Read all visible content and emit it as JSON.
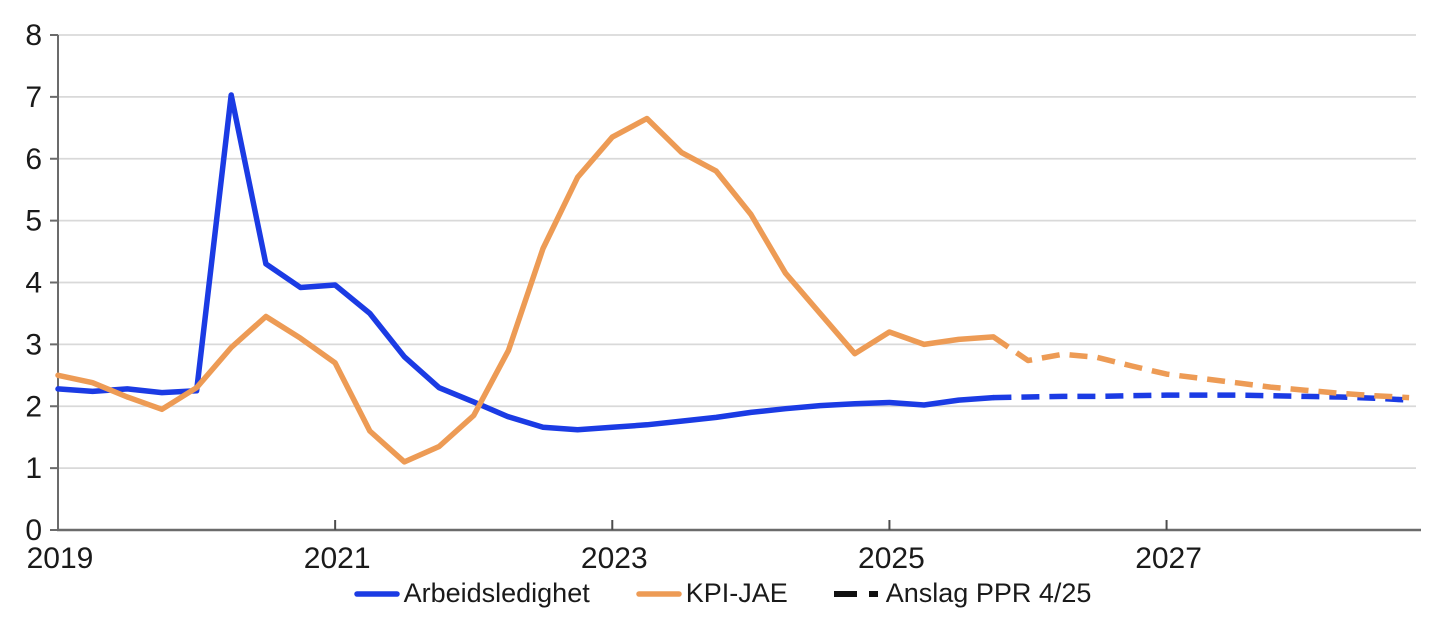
{
  "chart_data": {
    "type": "line",
    "title": "",
    "xlabel": "",
    "ylabel": "",
    "x_domain": [
      2019.0,
      2028.8
    ],
    "y_domain": [
      0,
      8
    ],
    "y_ticks": [
      0,
      1,
      2,
      3,
      4,
      5,
      6,
      7,
      8
    ],
    "x_ticks": [
      2019,
      2021,
      2023,
      2025,
      2027
    ],
    "x_tick_labels": [
      "2019",
      "2021",
      "2023",
      "2025",
      "2027"
    ],
    "grid": "horizontal",
    "legend_position": "bottom-center",
    "colors": {
      "blue": "#1b3be4",
      "orange": "#ed9b55",
      "grid": "#d9d9d9",
      "axis": "#6b6b6b",
      "tick": "#4d4d4d",
      "text": "#1a1a1a",
      "forecast_marker": "#111111"
    },
    "series": [
      {
        "name": "Arbeidsledighet",
        "color": "#1b3be4",
        "style": "solid",
        "points": [
          [
            2019.0,
            2.28
          ],
          [
            2019.25,
            2.24
          ],
          [
            2019.5,
            2.28
          ],
          [
            2019.75,
            2.22
          ],
          [
            2020.0,
            2.25
          ],
          [
            2020.25,
            7.03
          ],
          [
            2020.5,
            4.3
          ],
          [
            2020.75,
            3.92
          ],
          [
            2021.0,
            3.96
          ],
          [
            2021.25,
            3.5
          ],
          [
            2021.5,
            2.8
          ],
          [
            2021.75,
            2.3
          ],
          [
            2022.0,
            2.07
          ],
          [
            2022.25,
            1.83
          ],
          [
            2022.5,
            1.66
          ],
          [
            2022.75,
            1.62
          ],
          [
            2023.0,
            1.66
          ],
          [
            2023.25,
            1.7
          ],
          [
            2023.5,
            1.76
          ],
          [
            2023.75,
            1.82
          ],
          [
            2024.0,
            1.9
          ],
          [
            2024.25,
            1.96
          ],
          [
            2024.5,
            2.01
          ],
          [
            2024.75,
            2.04
          ],
          [
            2025.0,
            2.06
          ],
          [
            2025.25,
            2.02
          ],
          [
            2025.5,
            2.1
          ],
          [
            2025.75,
            2.14
          ]
        ]
      },
      {
        "name": "KPI-JAE",
        "color": "#ed9b55",
        "style": "solid",
        "points": [
          [
            2019.0,
            2.5
          ],
          [
            2019.25,
            2.38
          ],
          [
            2019.5,
            2.15
          ],
          [
            2019.75,
            1.95
          ],
          [
            2020.0,
            2.3
          ],
          [
            2020.25,
            2.95
          ],
          [
            2020.5,
            3.45
          ],
          [
            2020.75,
            3.1
          ],
          [
            2021.0,
            2.7
          ],
          [
            2021.25,
            1.6
          ],
          [
            2021.5,
            1.1
          ],
          [
            2021.75,
            1.35
          ],
          [
            2022.0,
            1.85
          ],
          [
            2022.25,
            2.9
          ],
          [
            2022.5,
            4.55
          ],
          [
            2022.75,
            5.7
          ],
          [
            2023.0,
            6.35
          ],
          [
            2023.25,
            6.65
          ],
          [
            2023.5,
            6.1
          ],
          [
            2023.75,
            5.8
          ],
          [
            2024.0,
            5.1
          ],
          [
            2024.25,
            4.15
          ],
          [
            2024.5,
            3.5
          ],
          [
            2024.75,
            2.85
          ],
          [
            2025.0,
            3.2
          ],
          [
            2025.25,
            3.0
          ],
          [
            2025.5,
            3.08
          ],
          [
            2025.75,
            3.12
          ]
        ]
      },
      {
        "name": "Arbeidsledighet anslag PPR 4/25",
        "color": "#1b3be4",
        "style": "dashed",
        "points": [
          [
            2025.75,
            2.14
          ],
          [
            2026.0,
            2.15
          ],
          [
            2026.25,
            2.16
          ],
          [
            2026.5,
            2.16
          ],
          [
            2026.75,
            2.17
          ],
          [
            2027.0,
            2.18
          ],
          [
            2027.25,
            2.18
          ],
          [
            2027.5,
            2.18
          ],
          [
            2027.75,
            2.17
          ],
          [
            2028.0,
            2.16
          ],
          [
            2028.25,
            2.15
          ],
          [
            2028.5,
            2.13
          ],
          [
            2028.75,
            2.1
          ]
        ]
      },
      {
        "name": "KPI-JAE anslag PPR 4/25",
        "color": "#ed9b55",
        "style": "dashed",
        "points": [
          [
            2025.75,
            3.12
          ],
          [
            2026.0,
            2.74
          ],
          [
            2026.25,
            2.84
          ],
          [
            2026.5,
            2.79
          ],
          [
            2026.75,
            2.65
          ],
          [
            2027.0,
            2.52
          ],
          [
            2027.25,
            2.45
          ],
          [
            2027.5,
            2.38
          ],
          [
            2027.75,
            2.31
          ],
          [
            2028.0,
            2.26
          ],
          [
            2028.25,
            2.21
          ],
          [
            2028.5,
            2.17
          ],
          [
            2028.75,
            2.14
          ]
        ]
      }
    ],
    "legend": [
      {
        "label": "Arbeidsledighet",
        "color": "#1b3be4",
        "style": "solid"
      },
      {
        "label": "KPI-JAE",
        "color": "#ed9b55",
        "style": "solid"
      },
      {
        "label": "Anslag PPR 4/25",
        "color": "#111111",
        "style": "dashed"
      }
    ]
  }
}
